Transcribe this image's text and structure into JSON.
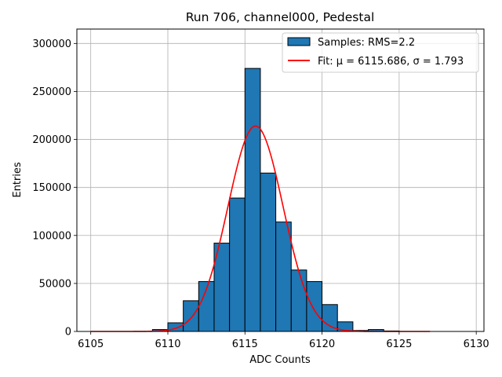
{
  "chart_data": {
    "type": "bar",
    "title": "Run 706, channel000, Pedestal",
    "xlabel": "ADC Counts",
    "ylabel": "Entries",
    "xlim": [
      6104.1,
      6130.5
    ],
    "ylim": [
      0,
      315000
    ],
    "xticks": [
      6105,
      6110,
      6115,
      6120,
      6125,
      6130
    ],
    "yticks": [
      0,
      50000,
      100000,
      150000,
      200000,
      250000,
      300000
    ],
    "grid": true,
    "legend_position": "top-right",
    "bins": [
      {
        "x0": 6109,
        "x1": 6110,
        "count": 2000
      },
      {
        "x0": 6110,
        "x1": 6111,
        "count": 9000
      },
      {
        "x0": 6111,
        "x1": 6112,
        "count": 32000
      },
      {
        "x0": 6112,
        "x1": 6113,
        "count": 52000
      },
      {
        "x0": 6113,
        "x1": 6114,
        "count": 92000
      },
      {
        "x0": 6114,
        "x1": 6115,
        "count": 139000
      },
      {
        "x0": 6115,
        "x1": 6116,
        "count": 274000
      },
      {
        "x0": 6116,
        "x1": 6117,
        "count": 165000
      },
      {
        "x0": 6117,
        "x1": 6118,
        "count": 114000
      },
      {
        "x0": 6118,
        "x1": 6119,
        "count": 64000
      },
      {
        "x0": 6119,
        "x1": 6120,
        "count": 52000
      },
      {
        "x0": 6120,
        "x1": 6121,
        "count": 28000
      },
      {
        "x0": 6121,
        "x1": 6122,
        "count": 10000
      },
      {
        "x0": 6122,
        "x1": 6123,
        "count": 1000
      },
      {
        "x0": 6123,
        "x1": 6124,
        "count": 2000
      },
      {
        "x0": 6124,
        "x1": 6125,
        "count": 500
      }
    ],
    "fit": {
      "mu": 6115.686,
      "sigma": 1.793,
      "amplitude": 214000,
      "x_range": [
        6105,
        6127
      ]
    },
    "series": [
      {
        "name": "Samples: RMS=2.2",
        "kind": "histogram",
        "color": "#1f77b4"
      },
      {
        "name": "Fit: μ = 6115.686, σ = 1.793",
        "kind": "line",
        "color": "#ff0000"
      }
    ]
  }
}
